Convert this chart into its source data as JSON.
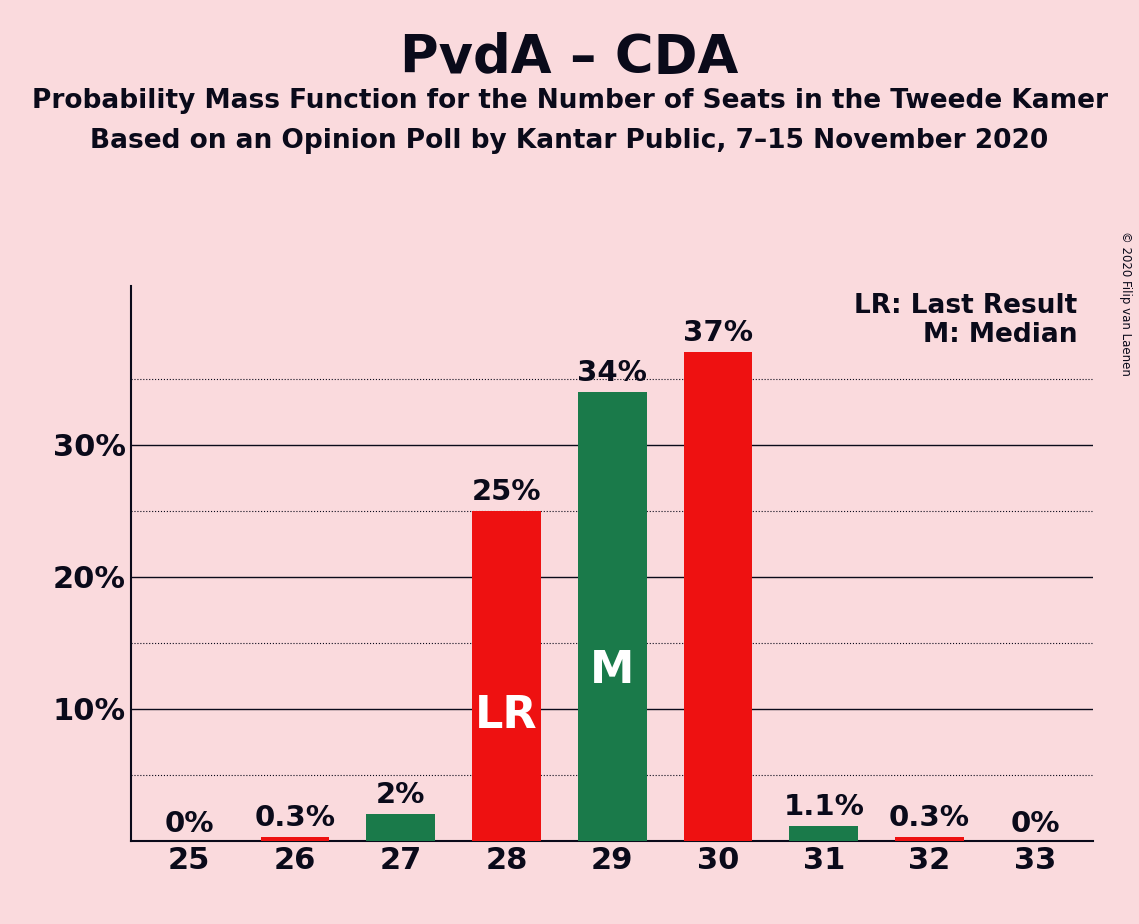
{
  "title": "PvdA – CDA",
  "subtitle1": "Probability Mass Function for the Number of Seats in the Tweede Kamer",
  "subtitle2": "Based on an Opinion Poll by Kantar Public, 7–15 November 2020",
  "copyright": "© 2020 Filip van Laenen",
  "seats": [
    25,
    26,
    27,
    28,
    29,
    30,
    31,
    32,
    33
  ],
  "values": [
    0.0,
    0.003,
    0.02,
    0.25,
    0.34,
    0.37,
    0.011,
    0.003,
    0.0
  ],
  "colors": [
    "#EE1111",
    "#EE1111",
    "#1A7A4A",
    "#EE1111",
    "#1A7A4A",
    "#EE1111",
    "#1A7A4A",
    "#EE1111",
    "#EE1111"
  ],
  "bar_labels": [
    "0%",
    "0.3%",
    "2%",
    "25%",
    "34%",
    "37%",
    "1.1%",
    "0.3%",
    "0%"
  ],
  "special_labels": {
    "28": "LR",
    "29": "M"
  },
  "ytick_vals": [
    0.1,
    0.2,
    0.3
  ],
  "ytick_labels": [
    "10%",
    "20%",
    "30%"
  ],
  "dotted_lines": [
    0.05,
    0.15,
    0.25,
    0.35
  ],
  "solid_lines": [
    0.1,
    0.2,
    0.3
  ],
  "background_color": "#FADADD",
  "bar_width": 0.65,
  "ylim": [
    0,
    0.42
  ],
  "legend_text1": "LR: Last Result",
  "legend_text2": "M: Median",
  "title_fontsize": 38,
  "subtitle_fontsize": 19,
  "label_fontsize": 21,
  "tick_fontsize": 22,
  "special_label_fontsize": 32,
  "legend_fontsize": 19,
  "text_color": "#0a0a1a"
}
